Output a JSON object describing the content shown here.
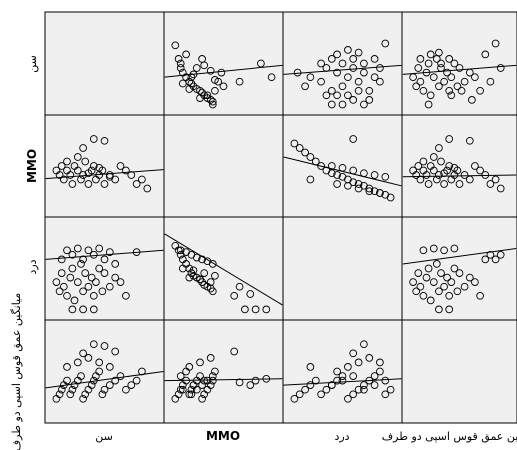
{
  "chart_data": {
    "type": "scatter",
    "chart_style": "scatterplot-matrix",
    "variables": [
      "سن",
      "MMO",
      "درد",
      "میانگین عمق قوس اسپی دو طرف"
    ],
    "column_labels": [
      "سن",
      "MMO",
      "درد",
      "میانگین عمق قوس اسپی دو طرف"
    ],
    "row_labels": [
      "سن",
      "MMO",
      "درد",
      "میانگین عمق قوس اسپی دو طرف"
    ],
    "grid": false,
    "fit_lines": true,
    "cells": [
      {
        "row": 0,
        "col": 1,
        "x": [
          0.05,
          0.08,
          0.1,
          0.12,
          0.15,
          0.18,
          0.2,
          0.22,
          0.25,
          0.28,
          0.3,
          0.32,
          0.35,
          0.38,
          0.4,
          0.42,
          0.45,
          0.48,
          0.5,
          0.1,
          0.15,
          0.2,
          0.25,
          0.3,
          0.35,
          0.4,
          0.12,
          0.22,
          0.32,
          0.42,
          0.18,
          0.28,
          0.38,
          0.65,
          0.85,
          0.95
        ],
        "y": [
          0.7,
          0.55,
          0.45,
          0.4,
          0.35,
          0.3,
          0.28,
          0.25,
          0.22,
          0.2,
          0.18,
          0.15,
          0.12,
          0.1,
          0.08,
          0.2,
          0.3,
          0.4,
          0.25,
          0.5,
          0.6,
          0.35,
          0.45,
          0.55,
          0.15,
          0.05,
          0.28,
          0.38,
          0.48,
          0.32,
          0.22,
          0.12,
          0.42,
          0.3,
          0.5,
          0.35
        ]
      },
      {
        "row": 0,
        "col": 2,
        "x": [
          0.08,
          0.15,
          0.2,
          0.3,
          0.35,
          0.4,
          0.45,
          0.5,
          0.55,
          0.6,
          0.65,
          0.7,
          0.75,
          0.8,
          0.85,
          0.3,
          0.4,
          0.5,
          0.6,
          0.7,
          0.8,
          0.35,
          0.45,
          0.55,
          0.65,
          0.75,
          0.85,
          0.4,
          0.5,
          0.6,
          0.7,
          0.9,
          0.45,
          0.55,
          0.65
        ],
        "y": [
          0.4,
          0.25,
          0.35,
          0.3,
          0.45,
          0.2,
          0.4,
          0.25,
          0.35,
          0.45,
          0.3,
          0.4,
          0.2,
          0.35,
          0.3,
          0.5,
          0.55,
          0.5,
          0.55,
          0.5,
          0.55,
          0.15,
          0.15,
          0.15,
          0.2,
          0.1,
          0.45,
          0.05,
          0.05,
          0.1,
          0.05,
          0.72,
          0.6,
          0.65,
          0.62
        ]
      },
      {
        "row": 0,
        "col": 3,
        "x": [
          0.05,
          0.08,
          0.1,
          0.12,
          0.15,
          0.18,
          0.2,
          0.22,
          0.25,
          0.28,
          0.3,
          0.32,
          0.35,
          0.38,
          0.4,
          0.42,
          0.45,
          0.48,
          0.5,
          0.55,
          0.6,
          0.65,
          0.7,
          0.75,
          0.8,
          0.85,
          0.9,
          0.12,
          0.22,
          0.32,
          0.42,
          0.52,
          0.62,
          0.2,
          0.3,
          0.4
        ],
        "y": [
          0.35,
          0.25,
          0.45,
          0.3,
          0.2,
          0.4,
          0.5,
          0.15,
          0.35,
          0.55,
          0.25,
          0.45,
          0.3,
          0.4,
          0.2,
          0.35,
          0.5,
          0.25,
          0.45,
          0.3,
          0.4,
          0.35,
          0.2,
          0.6,
          0.3,
          0.72,
          0.45,
          0.55,
          0.6,
          0.5,
          0.15,
          0.2,
          0.1,
          0.05,
          0.62,
          0.55
        ]
      },
      {
        "row": 1,
        "col": 0,
        "x": [
          0.05,
          0.08,
          0.1,
          0.12,
          0.15,
          0.18,
          0.2,
          0.22,
          0.25,
          0.28,
          0.3,
          0.32,
          0.35,
          0.38,
          0.4,
          0.42,
          0.45,
          0.48,
          0.5,
          0.55,
          0.6,
          0.65,
          0.7,
          0.75,
          0.8,
          0.85,
          0.9,
          0.15,
          0.25,
          0.35,
          0.45,
          0.55,
          0.3,
          0.4,
          0.5
        ],
        "y": [
          0.45,
          0.4,
          0.5,
          0.35,
          0.45,
          0.4,
          0.3,
          0.5,
          0.45,
          0.35,
          0.4,
          0.55,
          0.3,
          0.45,
          0.5,
          0.35,
          0.4,
          0.45,
          0.3,
          0.4,
          0.35,
          0.5,
          0.45,
          0.4,
          0.3,
          0.35,
          0.25,
          0.55,
          0.6,
          0.42,
          0.48,
          0.38,
          0.7,
          0.8,
          0.78
        ]
      },
      {
        "row": 1,
        "col": 2,
        "x": [
          0.05,
          0.1,
          0.15,
          0.2,
          0.25,
          0.3,
          0.35,
          0.4,
          0.45,
          0.5,
          0.55,
          0.6,
          0.65,
          0.7,
          0.75,
          0.8,
          0.85,
          0.9,
          0.95,
          0.4,
          0.5,
          0.6,
          0.7,
          0.8,
          0.9,
          0.45,
          0.55,
          0.65,
          0.75,
          0.85,
          0.2,
          0.6
        ],
        "y": [
          0.75,
          0.7,
          0.65,
          0.6,
          0.55,
          0.5,
          0.45,
          0.42,
          0.4,
          0.38,
          0.35,
          0.32,
          0.3,
          0.28,
          0.25,
          0.22,
          0.2,
          0.18,
          0.15,
          0.5,
          0.48,
          0.45,
          0.42,
          0.4,
          0.38,
          0.3,
          0.28,
          0.25,
          0.22,
          0.2,
          0.35,
          0.8
        ]
      },
      {
        "row": 1,
        "col": 3,
        "x": [
          0.05,
          0.08,
          0.1,
          0.12,
          0.15,
          0.18,
          0.2,
          0.22,
          0.25,
          0.28,
          0.3,
          0.32,
          0.35,
          0.38,
          0.4,
          0.42,
          0.45,
          0.48,
          0.5,
          0.55,
          0.6,
          0.65,
          0.7,
          0.75,
          0.8,
          0.85,
          0.9,
          0.15,
          0.25,
          0.35,
          0.45,
          0.3,
          0.4,
          0.6
        ],
        "y": [
          0.45,
          0.4,
          0.5,
          0.35,
          0.45,
          0.4,
          0.3,
          0.5,
          0.45,
          0.35,
          0.4,
          0.55,
          0.3,
          0.45,
          0.5,
          0.35,
          0.4,
          0.45,
          0.3,
          0.4,
          0.35,
          0.5,
          0.45,
          0.4,
          0.3,
          0.35,
          0.25,
          0.55,
          0.6,
          0.42,
          0.48,
          0.7,
          0.8,
          0.78
        ]
      },
      {
        "row": 2,
        "col": 0,
        "x": [
          0.05,
          0.08,
          0.1,
          0.12,
          0.15,
          0.18,
          0.2,
          0.22,
          0.25,
          0.28,
          0.3,
          0.32,
          0.35,
          0.38,
          0.4,
          0.42,
          0.45,
          0.48,
          0.5,
          0.55,
          0.6,
          0.65,
          0.7,
          0.1,
          0.2,
          0.3,
          0.4,
          0.5,
          0.6,
          0.15,
          0.25,
          0.35,
          0.45,
          0.55,
          0.2,
          0.3,
          0.4,
          0.8
        ],
        "y": [
          0.35,
          0.25,
          0.45,
          0.3,
          0.2,
          0.4,
          0.5,
          0.15,
          0.35,
          0.55,
          0.25,
          0.45,
          0.3,
          0.4,
          0.2,
          0.35,
          0.5,
          0.25,
          0.45,
          0.3,
          0.4,
          0.35,
          0.2,
          0.6,
          0.65,
          0.6,
          0.65,
          0.6,
          0.55,
          0.7,
          0.72,
          0.7,
          0.72,
          0.68,
          0.05,
          0.05,
          0.05,
          0.68
        ]
      },
      {
        "row": 2,
        "col": 1,
        "x": [
          0.05,
          0.08,
          0.1,
          0.12,
          0.15,
          0.18,
          0.2,
          0.22,
          0.25,
          0.28,
          0.3,
          0.32,
          0.35,
          0.38,
          0.4,
          0.1,
          0.15,
          0.2,
          0.25,
          0.3,
          0.35,
          0.4,
          0.12,
          0.22,
          0.32,
          0.42,
          0.18,
          0.28,
          0.38,
          0.65,
          0.8,
          0.9,
          0.6,
          0.75,
          0.7
        ],
        "y": [
          0.75,
          0.7,
          0.65,
          0.6,
          0.55,
          0.5,
          0.45,
          0.42,
          0.4,
          0.38,
          0.35,
          0.32,
          0.3,
          0.28,
          0.25,
          0.7,
          0.68,
          0.65,
          0.62,
          0.6,
          0.58,
          0.55,
          0.5,
          0.48,
          0.45,
          0.42,
          0.4,
          0.38,
          0.35,
          0.3,
          0.05,
          0.05,
          0.2,
          0.22,
          0.05
        ]
      },
      {
        "row": 2,
        "col": 3,
        "x": [
          0.05,
          0.08,
          0.1,
          0.12,
          0.15,
          0.18,
          0.2,
          0.22,
          0.25,
          0.28,
          0.3,
          0.32,
          0.35,
          0.38,
          0.4,
          0.42,
          0.45,
          0.48,
          0.5,
          0.55,
          0.6,
          0.65,
          0.7,
          0.75,
          0.8,
          0.85,
          0.9,
          0.15,
          0.25,
          0.35,
          0.45,
          0.3,
          0.4
        ],
        "y": [
          0.35,
          0.25,
          0.45,
          0.3,
          0.2,
          0.4,
          0.5,
          0.15,
          0.35,
          0.55,
          0.25,
          0.45,
          0.3,
          0.4,
          0.2,
          0.35,
          0.5,
          0.25,
          0.45,
          0.3,
          0.4,
          0.35,
          0.2,
          0.6,
          0.65,
          0.6,
          0.65,
          0.7,
          0.72,
          0.7,
          0.72,
          0.05,
          0.05
        ]
      },
      {
        "row": 3,
        "col": 0,
        "x": [
          0.05,
          0.08,
          0.1,
          0.12,
          0.15,
          0.18,
          0.2,
          0.22,
          0.25,
          0.28,
          0.3,
          0.32,
          0.35,
          0.38,
          0.4,
          0.42,
          0.45,
          0.48,
          0.5,
          0.55,
          0.6,
          0.65,
          0.7,
          0.75,
          0.8,
          0.85,
          0.15,
          0.25,
          0.35,
          0.45,
          0.55,
          0.3,
          0.4,
          0.5,
          0.6
        ],
        "y": [
          0.2,
          0.25,
          0.3,
          0.35,
          0.4,
          0.25,
          0.3,
          0.35,
          0.4,
          0.45,
          0.2,
          0.25,
          0.3,
          0.35,
          0.4,
          0.45,
          0.5,
          0.25,
          0.3,
          0.35,
          0.4,
          0.45,
          0.3,
          0.35,
          0.4,
          0.5,
          0.55,
          0.6,
          0.65,
          0.6,
          0.55,
          0.7,
          0.8,
          0.78,
          0.72
        ]
      },
      {
        "row": 3,
        "col": 1,
        "x": [
          0.05,
          0.08,
          0.1,
          0.12,
          0.15,
          0.18,
          0.2,
          0.22,
          0.25,
          0.28,
          0.3,
          0.32,
          0.35,
          0.38,
          0.4,
          0.1,
          0.15,
          0.2,
          0.25,
          0.3,
          0.35,
          0.4,
          0.12,
          0.22,
          0.32,
          0.42,
          0.18,
          0.28,
          0.38,
          0.65,
          0.8,
          0.9,
          0.6,
          0.75
        ],
        "y": [
          0.2,
          0.25,
          0.3,
          0.35,
          0.4,
          0.25,
          0.3,
          0.35,
          0.4,
          0.45,
          0.2,
          0.25,
          0.3,
          0.35,
          0.4,
          0.45,
          0.5,
          0.25,
          0.3,
          0.35,
          0.4,
          0.45,
          0.3,
          0.35,
          0.4,
          0.5,
          0.55,
          0.6,
          0.65,
          0.38,
          0.4,
          0.42,
          0.72,
          0.35
        ]
      },
      {
        "row": 3,
        "col": 2,
        "x": [
          0.05,
          0.1,
          0.15,
          0.2,
          0.25,
          0.3,
          0.35,
          0.4,
          0.45,
          0.5,
          0.55,
          0.6,
          0.65,
          0.7,
          0.75,
          0.8,
          0.85,
          0.9,
          0.95,
          0.4,
          0.5,
          0.6,
          0.7,
          0.8,
          0.9,
          0.45,
          0.55,
          0.65,
          0.75,
          0.85,
          0.2,
          0.6,
          0.7
        ],
        "y": [
          0.2,
          0.25,
          0.3,
          0.35,
          0.4,
          0.25,
          0.3,
          0.35,
          0.4,
          0.45,
          0.2,
          0.25,
          0.3,
          0.35,
          0.4,
          0.45,
          0.5,
          0.25,
          0.3,
          0.35,
          0.4,
          0.45,
          0.3,
          0.35,
          0.4,
          0.5,
          0.55,
          0.6,
          0.65,
          0.6,
          0.55,
          0.7,
          0.8
        ]
      }
    ],
    "fit_lines_by_cell": [
      {
        "row": 0,
        "col": 1,
        "y_start": 0.35,
        "y_end": 0.48
      },
      {
        "row": 0,
        "col": 2,
        "y_start": 0.38,
        "y_end": 0.48
      },
      {
        "row": 0,
        "col": 3,
        "y_start": 0.38,
        "y_end": 0.48
      },
      {
        "row": 1,
        "col": 0,
        "y_start": 0.36,
        "y_end": 0.46
      },
      {
        "row": 1,
        "col": 2,
        "y_start": 0.6,
        "y_end": 0.28
      },
      {
        "row": 1,
        "col": 3,
        "y_start": 0.38,
        "y_end": 0.4
      },
      {
        "row": 2,
        "col": 0,
        "y_start": 0.6,
        "y_end": 0.7
      },
      {
        "row": 2,
        "col": 1,
        "y_start": 0.88,
        "y_end": 0.1
      },
      {
        "row": 2,
        "col": 3,
        "y_start": 0.55,
        "y_end": 0.72
      },
      {
        "row": 3,
        "col": 0,
        "y_start": 0.32,
        "y_end": 0.5
      },
      {
        "row": 3,
        "col": 1,
        "y_start": 0.4,
        "y_end": 0.42
      },
      {
        "row": 3,
        "col": 2,
        "y_start": 0.35,
        "y_end": 0.42
      }
    ]
  }
}
